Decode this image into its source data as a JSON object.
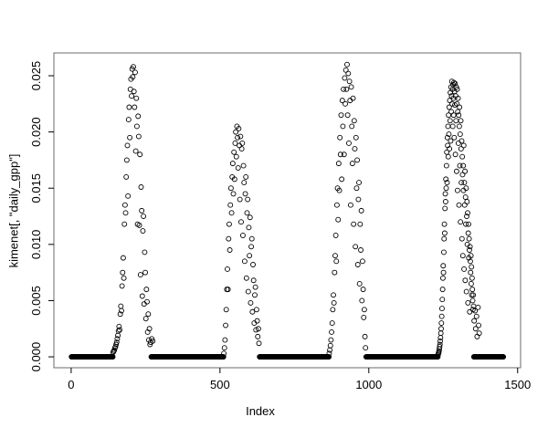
{
  "figure": {
    "background": "#ffffff",
    "kind": "R base-graphics scatter plot"
  },
  "chart_data": {
    "type": "scatter",
    "title": "",
    "xlabel": "Index",
    "ylabel": "kimenet[, \"daily_gpp\"]",
    "legend": null,
    "grid": false,
    "marker": {
      "shape": "open-circle",
      "color": "#000000",
      "radius_px": 2.5
    },
    "box_color": "#6b6b6b",
    "tick_color": "#000000",
    "text_color": "#000000",
    "xlim": [
      -58,
      1510
    ],
    "ylim": [
      -0.00097,
      0.02703
    ],
    "xticks": {
      "values": [
        0,
        500,
        1000,
        1500
      ],
      "labels": [
        "0",
        "500",
        "1000",
        "1500"
      ]
    },
    "yticks": {
      "values": [
        0,
        0.005,
        0.01,
        0.015,
        0.02,
        0.025
      ],
      "labels": [
        "0.000",
        "0.005",
        "0.010",
        "0.015",
        "0.020",
        "0.025"
      ]
    },
    "series": {
      "name": "daily_gpp",
      "description": "Four yearly growing-season peaks of daily GPP with zero values in winter",
      "zero_runs": [
        [
          1,
          140
        ],
        [
          269,
          512
        ],
        [
          633,
          866
        ],
        [
          991,
          1232
        ],
        [
          1353,
          1452
        ]
      ],
      "peaks": [
        {
          "x0": 141,
          "step": 2,
          "y": [
            0.0004,
            0.0005,
            0.0006,
            0.0008,
            0.0009,
            0.0011,
            0.0013,
            0.0016,
            0.0019,
            0.0023,
            0.0027,
            0.0024,
            0.0038,
            0.0045,
            0.0041,
            0.0063,
            0.0075,
            0.0088,
            0.007,
            0.0118,
            0.0135,
            0.0128,
            0.016,
            0.0175,
            0.0188,
            0.0143,
            0.0211,
            0.0222,
            0.0195,
            0.0238,
            0.0247,
            0.0232,
            0.0256,
            0.0249,
            0.0258,
            0.0236,
            0.0222,
            0.0253,
            0.0183,
            0.023,
            0.0205,
            0.0118,
            0.0214,
            0.0196,
            0.0117,
            0.018,
            0.0073,
            0.0151,
            0.013,
            0.0054,
            0.0112,
            0.0125,
            0.0047,
            0.0093,
            0.0075,
            0.0034,
            0.006,
            0.0049,
            0.0022,
            0.0038,
            0.0015,
            0.0025,
            0.0011,
            0.0013
          ]
        },
        {
          "x0": 513,
          "step": 2,
          "y": [
            0.0003,
            0.0008,
            0.0015,
            0.0028,
            0.0042,
            0.006,
            0.0078,
            0.006,
            0.0105,
            0.0118,
            0.0095,
            0.0135,
            0.015,
            0.0128,
            0.016,
            0.0172,
            0.0145,
            0.0182,
            0.0158,
            0.019,
            0.02,
            0.0178,
            0.0205,
            0.0195,
            0.0168,
            0.0203,
            0.0188,
            0.014,
            0.0196,
            0.012,
            0.0185,
            0.019,
            0.0108,
            0.017,
            0.0155,
            0.0085,
            0.0145,
            0.016,
            0.007,
            0.0128,
            0.014,
            0.0058,
            0.0115,
            0.009,
            0.0124,
            0.0048,
            0.0098,
            0.0105,
            0.004,
            0.0082,
            0.0068,
            0.003,
            0.0055,
            0.0062,
            0.0024,
            0.0042,
            0.0032,
            0.0018,
            0.0025,
            0.0012
          ]
        },
        {
          "x0": 867,
          "step": 2,
          "y": [
            0.0003,
            0.0006,
            0.001,
            0.0015,
            0.0022,
            0.003,
            0.0042,
            0.0055,
            0.0048,
            0.0075,
            0.009,
            0.0108,
            0.0085,
            0.0135,
            0.015,
            0.0122,
            0.0172,
            0.0148,
            0.0195,
            0.018,
            0.0215,
            0.0158,
            0.0228,
            0.0205,
            0.0238,
            0.018,
            0.0248,
            0.0225,
            0.0255,
            0.0238,
            0.026,
            0.0215,
            0.0252,
            0.019,
            0.0245,
            0.0228,
            0.0135,
            0.024,
            0.0205,
            0.0172,
            0.023,
            0.0118,
            0.021,
            0.0185,
            0.0098,
            0.0195,
            0.015,
            0.0175,
            0.0082,
            0.014,
            0.0155,
            0.0065,
            0.0118,
            0.0095,
            0.013,
            0.005,
            0.0085,
            0.006,
            0.0035,
            0.0042,
            0.0018,
            0.0008
          ]
        },
        {
          "x0": 1233,
          "step": 1,
          "y": [
            0.0002,
            0.0003,
            0.0004,
            0.0005,
            0.0007,
            0.0009,
            0.0011,
            0.0014,
            0.0017,
            0.0021,
            0.0025,
            0.003,
            0.0036,
            0.0043,
            0.0051,
            0.006,
            0.007,
            0.0081,
            0.0075,
            0.0093,
            0.0105,
            0.0118,
            0.011,
            0.0132,
            0.0145,
            0.0138,
            0.0158,
            0.015,
            0.017,
            0.0182,
            0.0155,
            0.0195,
            0.0188,
            0.0205,
            0.0178,
            0.0215,
            0.0198,
            0.0222,
            0.0185,
            0.0228,
            0.021,
            0.0235,
            0.0192,
            0.024,
            0.0218,
            0.0232,
            0.0245,
            0.0225,
            0.0238,
            0.0205,
            0.0242,
            0.023,
            0.0215,
            0.0244,
            0.0195,
            0.0236,
            0.0224,
            0.0243,
            0.018,
            0.0232,
            0.021,
            0.024,
            0.0165,
            0.0225,
            0.0238,
            0.0148,
            0.0218,
            0.023,
            0.019,
            0.0215,
            0.0135,
            0.0205,
            0.0222,
            0.017,
            0.0198,
            0.012,
            0.021,
            0.0185,
            0.0155,
            0.0192,
            0.0105,
            0.0178,
            0.0162,
            0.009,
            0.017,
            0.0148,
            0.0188,
            0.0078,
            0.0155,
            0.0135,
            0.0165,
            0.0068,
            0.0142,
            0.0118,
            0.015,
            0.0058,
            0.0125,
            0.0138,
            0.01,
            0.0128,
            0.0048,
            0.011,
            0.0118,
            0.0088,
            0.0105,
            0.0095,
            0.004,
            0.0098,
            0.0085,
            0.0075,
            0.009,
            0.0065,
            0.008,
            0.0055,
            0.007,
            0.006,
            0.005,
            0.0042,
            0.0055,
            0.0045
          ]
        }
      ],
      "extra_points": [
        [
          271,
          0.0016
        ],
        [
          274,
          0.0014
        ],
        [
          1354,
          0.0032
        ],
        [
          1357,
          0.0041
        ],
        [
          1359,
          0.0025
        ],
        [
          1362,
          0.0036
        ],
        [
          1364,
          0.0018
        ],
        [
          1367,
          0.0044
        ],
        [
          1369,
          0.0028
        ],
        [
          1371,
          0.0021
        ]
      ]
    }
  }
}
